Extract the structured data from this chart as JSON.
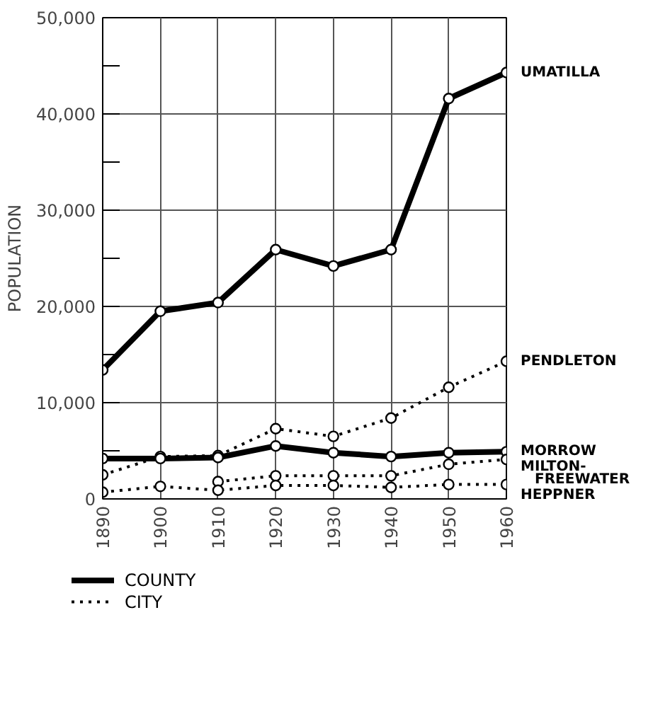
{
  "chart_data": {
    "type": "line",
    "ylabel": "POPULATION",
    "x": [
      1890,
      1900,
      1910,
      1920,
      1930,
      1940,
      1950,
      1960
    ],
    "xlim": [
      1890,
      1960
    ],
    "xticks": [
      1890,
      1900,
      1910,
      1920,
      1930,
      1940,
      1950,
      1960
    ],
    "ylim": [
      0,
      50000
    ],
    "yticks": [
      {
        "value": 0,
        "label": "0"
      },
      {
        "value": 5000,
        "label": null
      },
      {
        "value": 10000,
        "label": "10,000"
      },
      {
        "value": 15000,
        "label": null
      },
      {
        "value": 20000,
        "label": "20,000"
      },
      {
        "value": 25000,
        "label": null
      },
      {
        "value": 30000,
        "label": "30,000"
      },
      {
        "value": 35000,
        "label": null
      },
      {
        "value": 40000,
        "label": "40,000"
      },
      {
        "value": 45000,
        "label": null
      },
      {
        "value": 50000,
        "label": "50,000"
      }
    ],
    "grid": true,
    "marker": "circle",
    "legend": "bottom",
    "annotations": [
      "COUNTY",
      "CITY"
    ],
    "series": [
      {
        "name": "UMATILLA",
        "color": "#000000",
        "line_style": "solid",
        "values": [
          13400,
          19500,
          20400,
          25900,
          24200,
          25900,
          41600,
          44300
        ]
      },
      {
        "name": "PENDLETON",
        "color": "#000000",
        "line_style": "dotted",
        "values": [
          2500,
          4400,
          4500,
          7300,
          6500,
          8400,
          11600,
          14300
        ]
      },
      {
        "name": "MORROW",
        "color": "#000000",
        "line_style": "solid",
        "values": [
          4200,
          4200,
          4300,
          5500,
          4800,
          4400,
          4800,
          4900
        ]
      },
      {
        "name": "MILTON-\nFREEWATER",
        "color": "#000000",
        "line_style": "dotted",
        "values": [
          null,
          null,
          1800,
          2400,
          2400,
          2400,
          3600,
          4100
        ]
      },
      {
        "name": "HEPPNER",
        "color": "#000000",
        "line_style": "dotted",
        "values": [
          700,
          1300,
          900,
          1400,
          1400,
          1200,
          1500,
          1500
        ]
      }
    ]
  }
}
